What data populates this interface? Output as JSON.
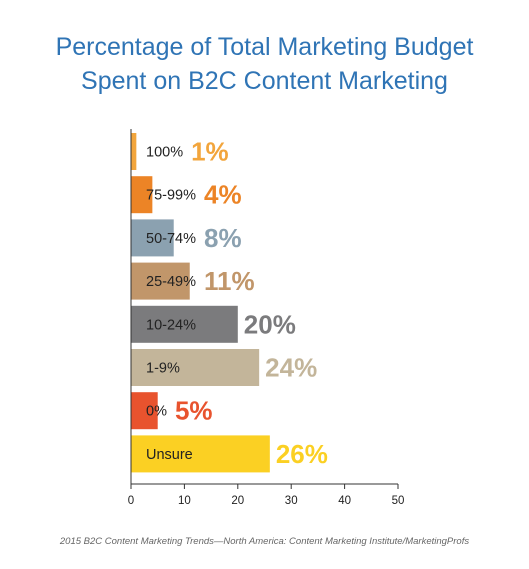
{
  "chart_data": {
    "type": "bar",
    "orientation": "horizontal",
    "title_lines": [
      "Percentage of Total Marketing Budget",
      "Spent on B2C Content Marketing"
    ],
    "categories": [
      "100%",
      "75-99%",
      "50-74%",
      "25-49%",
      "10-24%",
      "1-9%",
      "0%",
      "Unsure"
    ],
    "values": [
      1,
      4,
      8,
      11,
      20,
      24,
      5,
      26
    ],
    "value_labels": [
      "1%",
      "4%",
      "8%",
      "11%",
      "20%",
      "24%",
      "5%",
      "26%"
    ],
    "colors": [
      "#f2a53c",
      "#ec8426",
      "#8ba1b0",
      "#c1966a",
      "#7b7b7d",
      "#c3b59a",
      "#e8532e",
      "#fbd023"
    ],
    "xlim": [
      0,
      50
    ],
    "xticks": [
      0,
      10,
      20,
      30,
      40,
      50
    ],
    "grid": false,
    "source": "2015 B2C Content Marketing Trends—North America: Content Marketing Institute/MarketingProfs"
  }
}
